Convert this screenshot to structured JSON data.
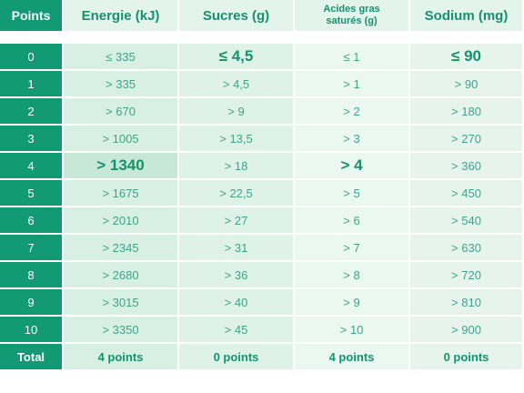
{
  "headers": [
    "Points",
    "Energie (kJ)",
    "Sucres (g)",
    "Acides gras saturés (g)",
    "Sodium (mg)"
  ],
  "rows": [
    {
      "points": "0",
      "energie": "≤ 335",
      "sucres": "≤ 4,5",
      "acides": "≤ 1",
      "sodium": "≤ 90"
    },
    {
      "points": "1",
      "energie": "> 335",
      "sucres": "> 4,5",
      "acides": "> 1",
      "sodium": "> 90"
    },
    {
      "points": "2",
      "energie": "> 670",
      "sucres": "> 9",
      "acides": "> 2",
      "sodium": "> 180"
    },
    {
      "points": "3",
      "energie": "> 1005",
      "sucres": "> 13,5",
      "acides": "> 3",
      "sodium": "> 270"
    },
    {
      "points": "4",
      "energie": "> 1340",
      "sucres": "> 18",
      "acides": "> 4",
      "sodium": "> 360"
    },
    {
      "points": "5",
      "energie": "> 1675",
      "sucres": "> 22,5",
      "acides": "> 5",
      "sodium": "> 450"
    },
    {
      "points": "6",
      "energie": "> 2010",
      "sucres": "> 27",
      "acides": "> 6",
      "sodium": "> 540"
    },
    {
      "points": "7",
      "energie": "> 2345",
      "sucres": "> 31",
      "acides": "> 7",
      "sodium": "> 630"
    },
    {
      "points": "8",
      "energie": "> 2680",
      "sucres": "> 36",
      "acides": "> 8",
      "sodium": "> 720"
    },
    {
      "points": "9",
      "energie": "> 3015",
      "sucres": "> 40",
      "acides": "> 9",
      "sodium": "> 810"
    },
    {
      "points": "10",
      "energie": "> 3350",
      "sucres": "> 45",
      "acides": "> 10",
      "sodium": "> 900"
    }
  ],
  "highlighted": {
    "energie": 4,
    "sucres": 0,
    "acides": 4,
    "sodium": 0
  },
  "total": {
    "label": "Total",
    "energie": "4 points",
    "sucres": "0 points",
    "acides": "4 points",
    "sodium": "0 points"
  },
  "colors": {
    "accent": "#119a73",
    "text": "#3fa38a",
    "highlight": "#c7e7d7"
  }
}
